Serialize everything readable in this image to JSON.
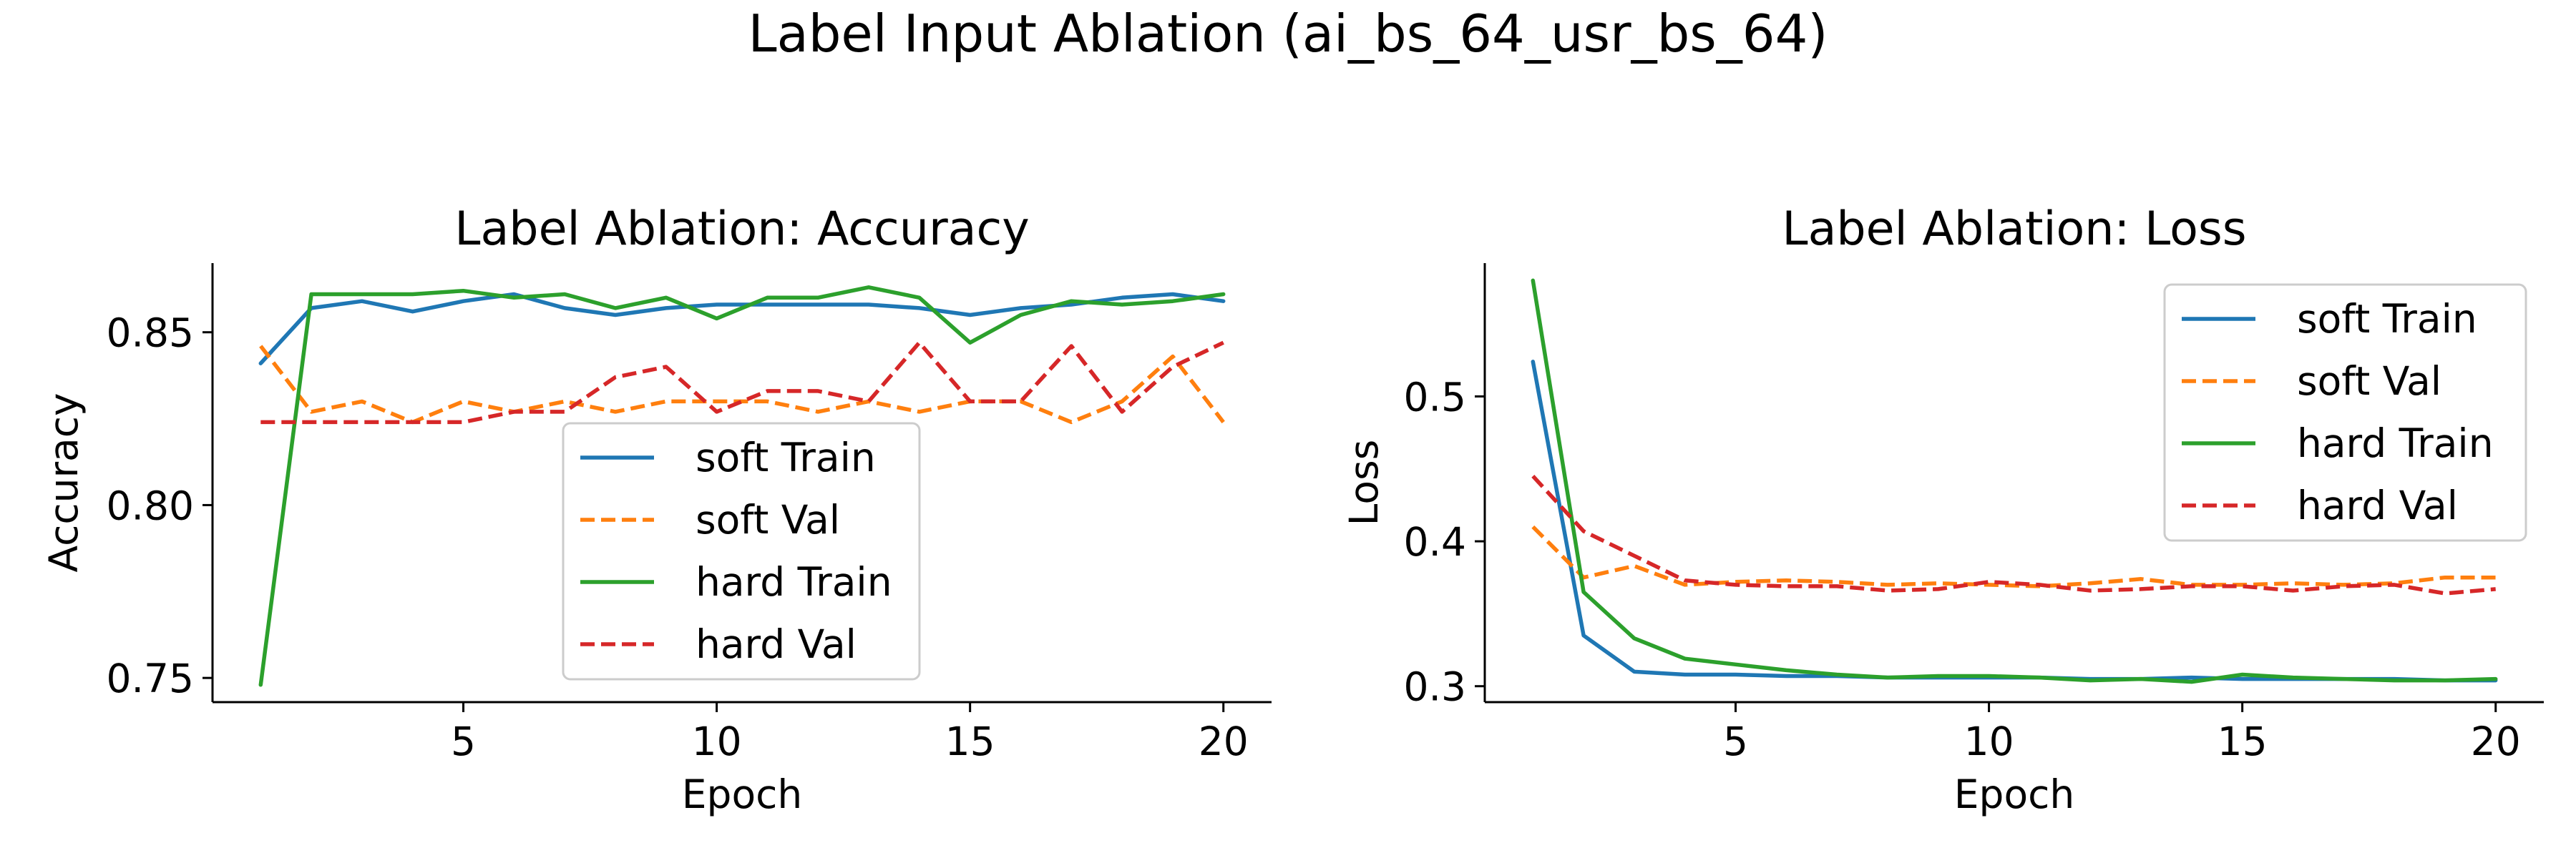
{
  "suptitle": "Label Input Ablation (ai_bs_64_usr_bs_64)",
  "colors": {
    "soft_train": "#1f77b4",
    "soft_val": "#ff7f0e",
    "hard_train": "#2ca02c",
    "hard_val": "#d62728"
  },
  "chart_data": [
    {
      "type": "line",
      "title": "Label Ablation: Accuracy",
      "xlabel": "Epoch",
      "ylabel": "Accuracy",
      "xlim": [
        0.05,
        20.95
      ],
      "ylim": [
        0.743,
        0.87
      ],
      "xticks": [
        5,
        10,
        15,
        20
      ],
      "yticks": [
        0.75,
        0.8,
        0.85
      ],
      "ytick_labels": [
        "0.75",
        "0.80",
        "0.85"
      ],
      "grid": false,
      "legend_position": "lower center",
      "x": [
        1,
        2,
        3,
        4,
        5,
        6,
        7,
        8,
        9,
        10,
        11,
        12,
        13,
        14,
        15,
        16,
        17,
        18,
        19,
        20
      ],
      "series": [
        {
          "name": "soft Train",
          "color": "#1f77b4",
          "style": "solid",
          "values": [
            0.841,
            0.857,
            0.859,
            0.856,
            0.859,
            0.861,
            0.857,
            0.855,
            0.857,
            0.858,
            0.858,
            0.858,
            0.858,
            0.857,
            0.855,
            0.857,
            0.858,
            0.86,
            0.861,
            0.859
          ]
        },
        {
          "name": "soft Val",
          "color": "#ff7f0e",
          "style": "dashed",
          "values": [
            0.846,
            0.827,
            0.83,
            0.824,
            0.83,
            0.827,
            0.83,
            0.827,
            0.83,
            0.83,
            0.83,
            0.827,
            0.83,
            0.827,
            0.83,
            0.83,
            0.824,
            0.83,
            0.843,
            0.824
          ]
        },
        {
          "name": "hard Train",
          "color": "#2ca02c",
          "style": "solid",
          "values": [
            0.748,
            0.861,
            0.861,
            0.861,
            0.862,
            0.86,
            0.861,
            0.857,
            0.86,
            0.854,
            0.86,
            0.86,
            0.863,
            0.86,
            0.847,
            0.855,
            0.859,
            0.858,
            0.859,
            0.861
          ]
        },
        {
          "name": "hard Val",
          "color": "#d62728",
          "style": "dashed",
          "values": [
            0.824,
            0.824,
            0.824,
            0.824,
            0.824,
            0.827,
            0.827,
            0.837,
            0.84,
            0.827,
            0.833,
            0.833,
            0.83,
            0.847,
            0.83,
            0.83,
            0.846,
            0.827,
            0.84,
            0.847
          ]
        }
      ]
    },
    {
      "type": "line",
      "title": "Label Ablation: Loss",
      "xlabel": "Epoch",
      "ylabel": "Loss",
      "xlim": [
        0.05,
        20.95
      ],
      "ylim": [
        0.289,
        0.592
      ],
      "xticks": [
        5,
        10,
        15,
        20
      ],
      "yticks": [
        0.3,
        0.4,
        0.5
      ],
      "ytick_labels": [
        "0.3",
        "0.4",
        "0.5"
      ],
      "grid": false,
      "legend_position": "upper right",
      "x": [
        1,
        2,
        3,
        4,
        5,
        6,
        7,
        8,
        9,
        10,
        11,
        12,
        13,
        14,
        15,
        16,
        17,
        18,
        19,
        20
      ],
      "series": [
        {
          "name": "soft Train",
          "color": "#1f77b4",
          "style": "solid",
          "values": [
            0.524,
            0.335,
            0.31,
            0.308,
            0.308,
            0.307,
            0.307,
            0.306,
            0.306,
            0.306,
            0.306,
            0.305,
            0.305,
            0.306,
            0.305,
            0.305,
            0.305,
            0.305,
            0.304,
            0.304
          ]
        },
        {
          "name": "soft Val",
          "color": "#ff7f0e",
          "style": "dashed",
          "values": [
            0.41,
            0.375,
            0.383,
            0.37,
            0.372,
            0.373,
            0.372,
            0.37,
            0.371,
            0.37,
            0.369,
            0.371,
            0.374,
            0.37,
            0.37,
            0.371,
            0.37,
            0.371,
            0.375,
            0.375
          ]
        },
        {
          "name": "hard Train",
          "color": "#2ca02c",
          "style": "solid",
          "values": [
            0.58,
            0.365,
            0.333,
            0.319,
            0.315,
            0.311,
            0.308,
            0.306,
            0.307,
            0.307,
            0.306,
            0.304,
            0.305,
            0.303,
            0.308,
            0.306,
            0.305,
            0.304,
            0.304,
            0.305
          ]
        },
        {
          "name": "hard Val",
          "color": "#d62728",
          "style": "dashed",
          "values": [
            0.445,
            0.407,
            0.39,
            0.373,
            0.37,
            0.369,
            0.369,
            0.366,
            0.367,
            0.372,
            0.37,
            0.366,
            0.367,
            0.369,
            0.369,
            0.366,
            0.369,
            0.37,
            0.364,
            0.367
          ]
        }
      ]
    }
  ]
}
